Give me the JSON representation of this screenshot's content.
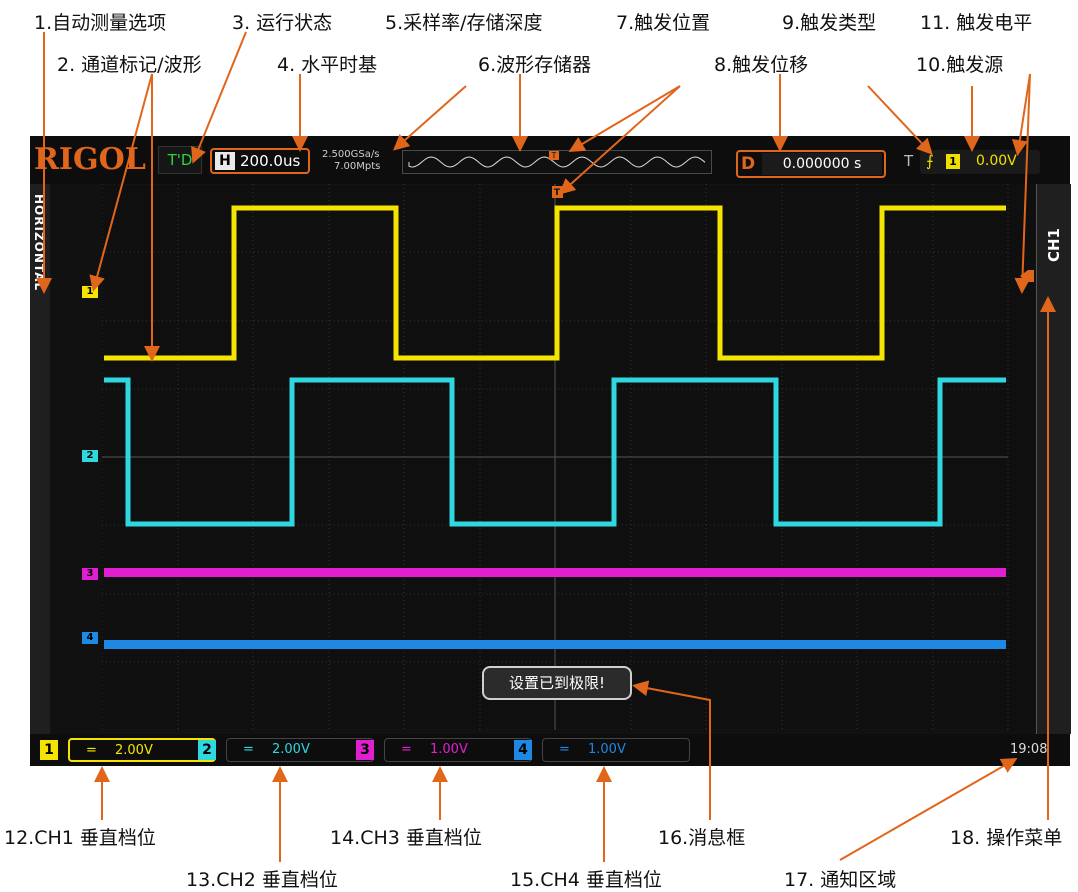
{
  "annotations": [
    {
      "key": "auto_measure",
      "text": "1.自动测量选项"
    },
    {
      "key": "channel_label",
      "text": "2. 通道标记/波形"
    },
    {
      "key": "run_status",
      "text": "3. 运行状态"
    },
    {
      "key": "h_timebase",
      "text": "4. 水平时基"
    },
    {
      "key": "sample_rate",
      "text": "5.采样率/存储深度"
    },
    {
      "key": "wave_memory",
      "text": "6.波形存储器"
    },
    {
      "key": "trig_position",
      "text": "7.触发位置"
    },
    {
      "key": "trig_offset",
      "text": "8.触发位移"
    },
    {
      "key": "trig_type",
      "text": "9.触发类型"
    },
    {
      "key": "trig_source",
      "text": "10.触发源"
    },
    {
      "key": "trig_level",
      "text": "11. 触发电平"
    },
    {
      "key": "ch1_scale",
      "text": "12.CH1 垂直档位"
    },
    {
      "key": "ch2_scale",
      "text": "13.CH2 垂直档位"
    },
    {
      "key": "ch3_scale",
      "text": "14.CH3 垂直档位"
    },
    {
      "key": "ch4_scale",
      "text": "15.CH4 垂直档位"
    },
    {
      "key": "message_box",
      "text": "16.消息框"
    },
    {
      "key": "notify_area",
      "text": "17. 通知区域"
    },
    {
      "key": "op_menu",
      "text": "18. 操作菜单"
    }
  ],
  "scope": {
    "logo": "RIGOL",
    "run_status": "T'D",
    "timebase_label": "H",
    "timebase": "200.0us",
    "sample_rate": "2.500GSa/s",
    "memory_depth": "7.00Mpts",
    "trigger_marker": "T",
    "delay_label": "D",
    "delay": "0.000000 s",
    "trigger_label": "T",
    "trigger_edge": "rising-edge-icon",
    "trigger_source": "1",
    "trigger_level": "0.00V",
    "left_menu": "HORIZONTAL",
    "right_menu": "CH1",
    "message": "设置已到极限!",
    "clock": "19:08",
    "channels": [
      {
        "num": "1",
        "coupling": "=",
        "scale": "2.00V",
        "color": "#f5e400"
      },
      {
        "num": "2",
        "coupling": "=",
        "scale": "2.00V",
        "color": "#2fd8e0"
      },
      {
        "num": "3",
        "coupling": "=",
        "scale": "1.00V",
        "color": "#e020d0"
      },
      {
        "num": "4",
        "coupling": "=",
        "scale": "1.00V",
        "color": "#1e88e5"
      }
    ]
  },
  "colors": {
    "accent": "#e0661c",
    "screen_bg": "#111111",
    "grid": "#3a3a3a"
  }
}
